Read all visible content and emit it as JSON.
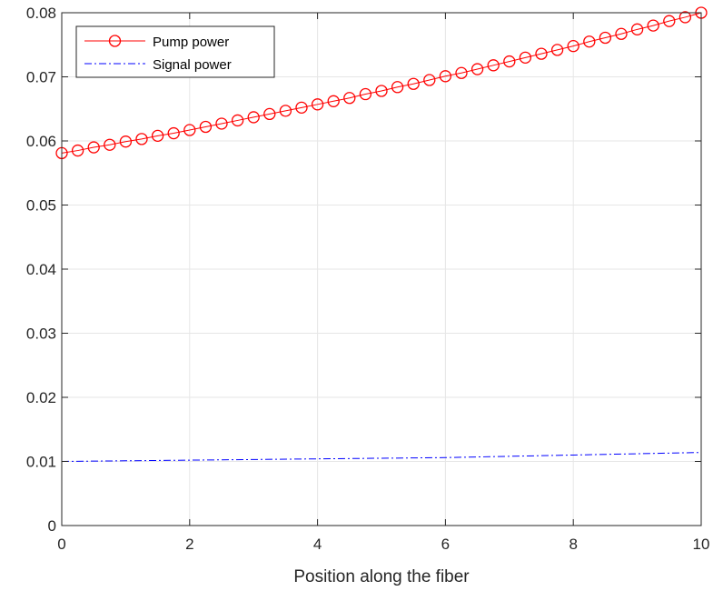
{
  "chart_data": {
    "type": "line",
    "title": "",
    "xlabel": "Position along the fiber",
    "ylabel": "",
    "xlim": [
      0,
      10
    ],
    "ylim": [
      0,
      0.08
    ],
    "grid": true,
    "legend_position": "top-left",
    "x_ticks": [
      "0",
      "2",
      "4",
      "6",
      "8",
      "10"
    ],
    "y_ticks": [
      "0",
      "0.01",
      "0.02",
      "0.03",
      "0.04",
      "0.05",
      "0.06",
      "0.07",
      "0.08"
    ],
    "series": [
      {
        "name": "Pump power",
        "color": "#ff0000",
        "line_style": "solid",
        "marker": "circle",
        "x": [
          0,
          0.25,
          0.5,
          0.75,
          1,
          1.25,
          1.5,
          1.75,
          2,
          2.25,
          2.5,
          2.75,
          3,
          3.25,
          3.5,
          3.75,
          4,
          4.25,
          4.5,
          4.75,
          5,
          5.25,
          5.5,
          5.75,
          6,
          6.25,
          6.5,
          6.75,
          7,
          7.25,
          7.5,
          7.75,
          8,
          8.25,
          8.5,
          8.75,
          9,
          9.25,
          9.5,
          9.75,
          10
        ],
        "values": [
          0.0581,
          0.0585,
          0.059,
          0.0594,
          0.0599,
          0.0603,
          0.0608,
          0.0612,
          0.0617,
          0.0622,
          0.0627,
          0.0632,
          0.0637,
          0.0642,
          0.0647,
          0.0652,
          0.0657,
          0.0662,
          0.0667,
          0.0673,
          0.0678,
          0.0684,
          0.0689,
          0.0695,
          0.0701,
          0.0706,
          0.0712,
          0.0718,
          0.0724,
          0.073,
          0.0736,
          0.0742,
          0.0748,
          0.0755,
          0.0761,
          0.0767,
          0.0774,
          0.078,
          0.0787,
          0.0793,
          0.08
        ]
      },
      {
        "name": "Signal power",
        "color": "#0000ff",
        "line_style": "dashdot",
        "marker": "none",
        "x": [
          0,
          1,
          2,
          3,
          4,
          5,
          6,
          7,
          8,
          9,
          10
        ],
        "values": [
          0.01,
          0.0101,
          0.0102,
          0.0103,
          0.0104,
          0.0105,
          0.0106,
          0.0108,
          0.011,
          0.0112,
          0.0114
        ]
      }
    ]
  }
}
